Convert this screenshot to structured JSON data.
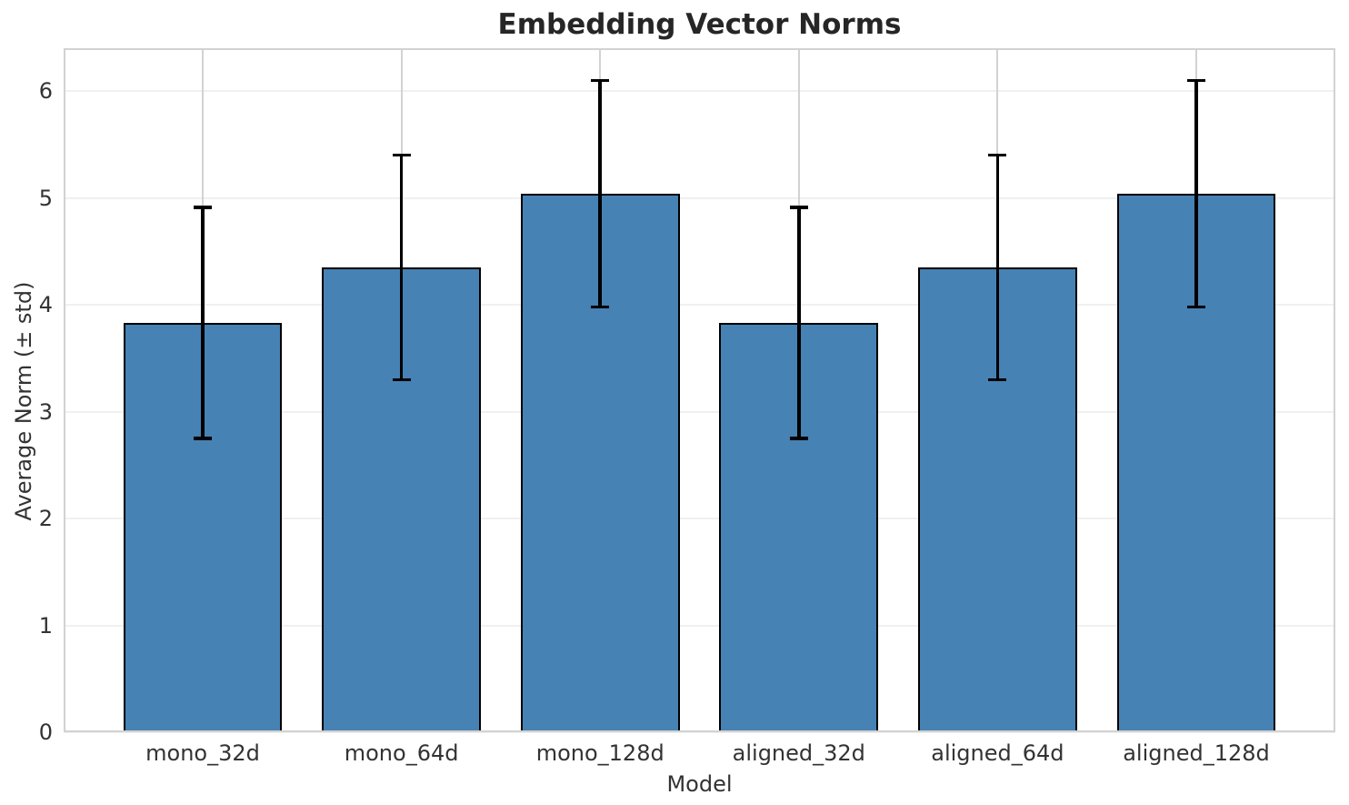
{
  "chart_data": {
    "type": "bar",
    "title": "Embedding Vector Norms",
    "xlabel": "Model",
    "ylabel": "Average Norm (± std)",
    "categories": [
      "mono_32d",
      "mono_64d",
      "mono_128d",
      "aligned_32d",
      "aligned_64d",
      "aligned_128d"
    ],
    "values": [
      3.83,
      4.35,
      5.04,
      3.83,
      4.35,
      5.04
    ],
    "errors": [
      1.08,
      1.05,
      1.06,
      1.08,
      1.05,
      1.06
    ],
    "yticks": [
      0,
      1,
      2,
      3,
      4,
      5,
      6
    ],
    "ylim": [
      0,
      6.4
    ],
    "xlim": [
      -0.7,
      5.7
    ],
    "bar_width": 0.8,
    "grid": "both",
    "legend": "none",
    "colors": {
      "bar_fill": "#4682b4",
      "bar_edge": "#000000",
      "error": "#000000",
      "grid_h": "#f0f0f0",
      "grid_v": "#d2d2d2",
      "spine": "#d2d2d2",
      "title_text": "#262626",
      "tick_text": "#333333",
      "background": "#ffffff"
    }
  }
}
